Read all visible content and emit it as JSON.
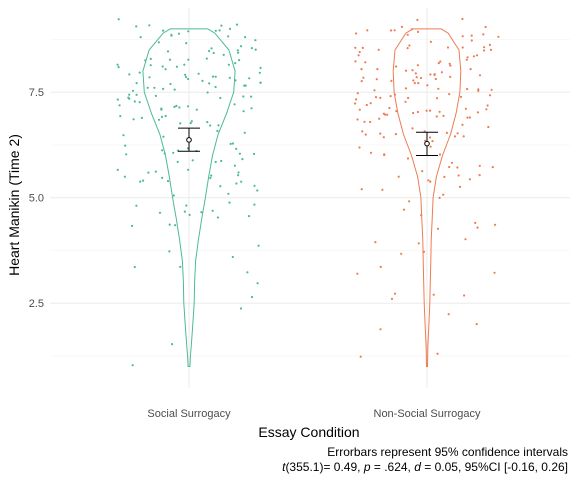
{
  "chart_data": {
    "type": "violin",
    "xlabel": "Essay Condition",
    "ylabel": "Heart Manikin (Time 2)",
    "ylim": [
      0.6,
      9.5
    ],
    "yticks": [
      "2.5",
      "5.0",
      "7.5"
    ],
    "ytick_values": [
      2.5,
      5.0,
      7.5
    ],
    "grid": true,
    "categories": [
      "Social Surrogacy",
      "Non-Social Surrogacy"
    ],
    "colors": [
      "#4DB998",
      "#EE7B52"
    ],
    "series": [
      {
        "category": "Social Surrogacy",
        "mean": 6.37,
        "ci": [
          6.1,
          6.65
        ],
        "violin_half_width": [
          [
            1.0,
            0.02
          ],
          [
            1.25,
            0.03
          ],
          [
            1.5,
            0.05
          ],
          [
            2.0,
            0.08
          ],
          [
            2.5,
            0.11
          ],
          [
            3.0,
            0.12
          ],
          [
            3.5,
            0.14
          ],
          [
            4.0,
            0.2
          ],
          [
            4.5,
            0.27
          ],
          [
            5.0,
            0.35
          ],
          [
            5.5,
            0.42
          ],
          [
            6.0,
            0.5
          ],
          [
            6.5,
            0.62
          ],
          [
            7.0,
            0.8
          ],
          [
            7.5,
            0.95
          ],
          [
            8.0,
            0.98
          ],
          [
            8.5,
            0.85
          ],
          [
            8.9,
            0.55
          ],
          [
            9.0,
            0.4
          ]
        ]
      },
      {
        "category": "Non-Social Surrogacy",
        "mean": 6.28,
        "ci": [
          6.0,
          6.55
        ],
        "violin_half_width": [
          [
            1.0,
            0.01
          ],
          [
            1.5,
            0.02
          ],
          [
            2.0,
            0.04
          ],
          [
            2.5,
            0.06
          ],
          [
            3.0,
            0.07
          ],
          [
            3.5,
            0.08
          ],
          [
            4.0,
            0.09
          ],
          [
            4.5,
            0.11
          ],
          [
            5.0,
            0.13
          ],
          [
            5.5,
            0.2
          ],
          [
            6.0,
            0.33
          ],
          [
            6.5,
            0.5
          ],
          [
            7.0,
            0.62
          ],
          [
            7.5,
            0.7
          ],
          [
            8.0,
            0.72
          ],
          [
            8.5,
            0.68
          ],
          [
            8.9,
            0.45
          ],
          [
            9.0,
            0.3
          ]
        ]
      }
    ],
    "annotation_lines": [
      "Errorbars represent 95% confidence intervals",
      "t(355.1)= 0.49, p = .624, d = 0.05, 95%CI [-0.16, 0.26]"
    ]
  }
}
